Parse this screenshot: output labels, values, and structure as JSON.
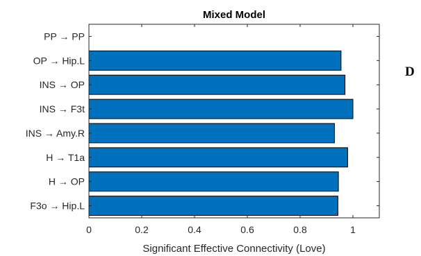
{
  "panel_label": "D",
  "chart_data": {
    "type": "bar",
    "orientation": "horizontal",
    "title": "Mixed Model",
    "xlabel": "Significant Effective Connectivity (Love)",
    "ylabel": "",
    "categories": [
      "PP → PP",
      "OP → Hip.L",
      "INS → OP",
      "INS → F3t",
      "INS → Amy.R",
      "H → T1a",
      "H → OP",
      "F3o → Hip.L"
    ],
    "values": [
      0,
      0.955,
      0.97,
      1.0,
      0.93,
      0.98,
      0.945,
      0.943
    ],
    "xlim": [
      0,
      1.1
    ],
    "xticks": [
      0,
      0.2,
      0.4,
      0.6,
      0.8,
      1
    ],
    "xtick_labels": [
      "0",
      "0.2",
      "0.4",
      "0.6",
      "0.8",
      "1"
    ],
    "grid": false,
    "legend": "none",
    "bar_color": "#0072BD",
    "edge_color": "#000000"
  }
}
